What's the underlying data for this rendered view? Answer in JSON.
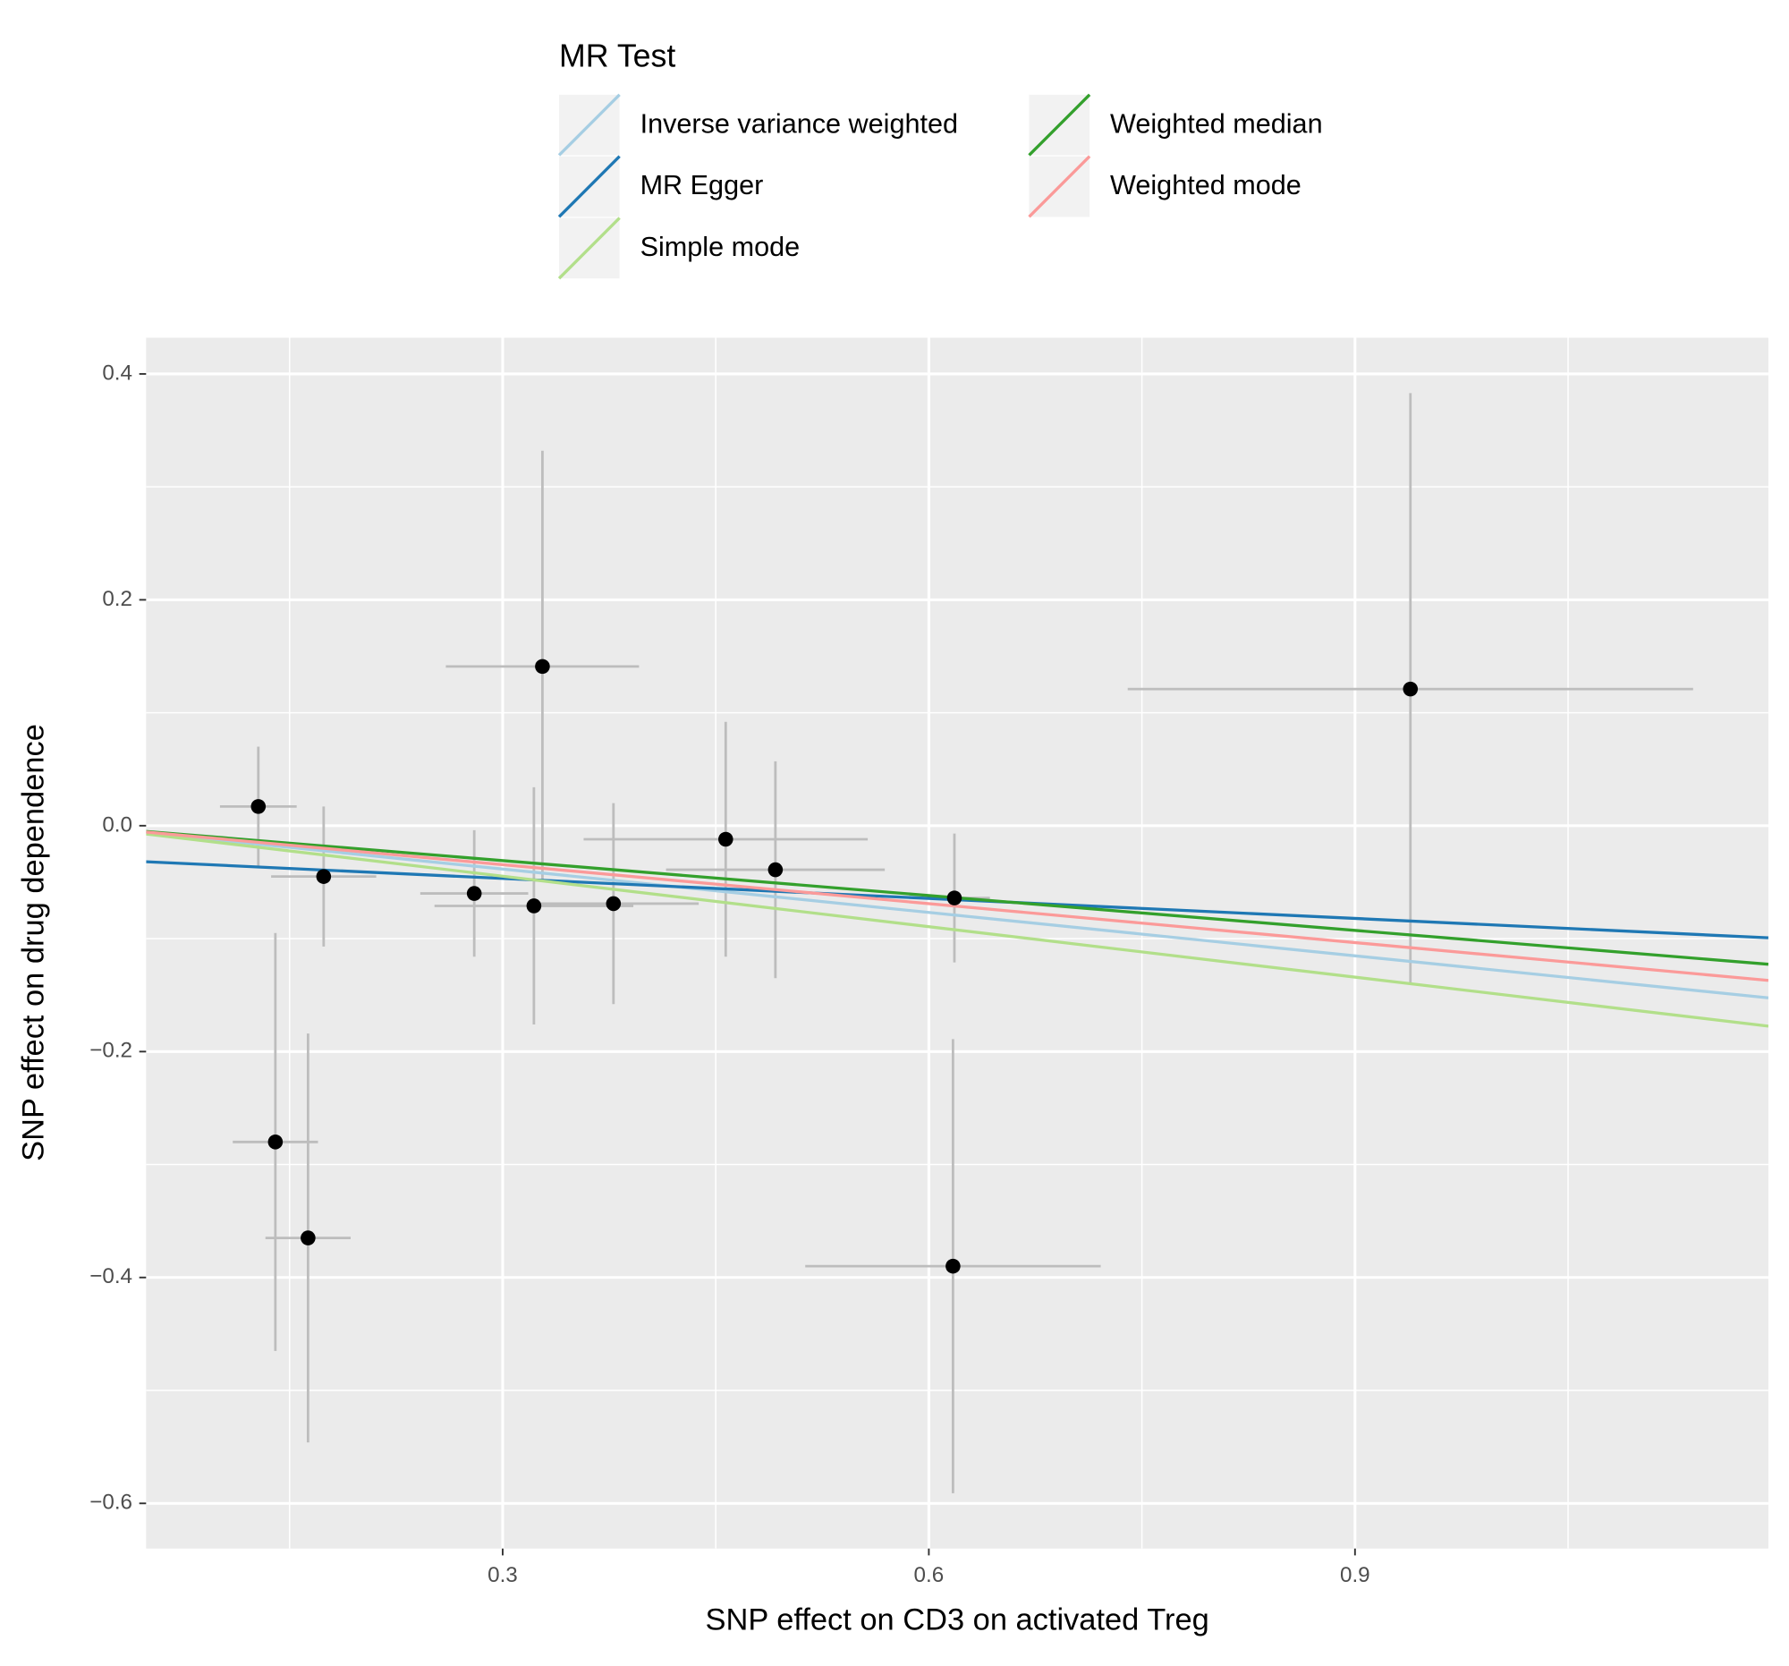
{
  "chart_data": {
    "type": "scatter",
    "x_label": "SNP effect on CD3 on activated Treg",
    "y_label": "SNP effect on drug dependence",
    "legend_title": "MR Test",
    "legend_position": "top",
    "grid": true,
    "background": "#ebebeb",
    "xlim": [
      0.049,
      1.191
    ],
    "ylim": [
      -0.64,
      0.432
    ],
    "xticks": [
      0.3,
      0.6,
      0.9
    ],
    "yticks": [
      {
        "value": -0.6,
        "label": "−0.6"
      },
      {
        "value": -0.4,
        "label": "−0.4"
      },
      {
        "value": -0.2,
        "label": "−0.2"
      },
      {
        "value": 0,
        "label": "0.0"
      },
      0.2,
      0.4
    ],
    "x_minor_grid": [
      0.15,
      0.45,
      0.75,
      1.05
    ],
    "y_minor_grid": [
      -0.5,
      -0.3,
      -0.1,
      0.1,
      0.3
    ],
    "points": {
      "color": "#000000",
      "error_color": "#bdbdbd",
      "x": [
        0.128,
        0.174,
        0.14,
        0.163,
        0.28,
        0.328,
        0.322,
        0.378,
        0.457,
        0.492,
        0.618,
        0.617,
        0.939
      ],
      "y": [
        0.017,
        -0.045,
        -0.28,
        -0.365,
        -0.06,
        0.141,
        -0.071,
        -0.069,
        -0.012,
        -0.039,
        -0.064,
        -0.39,
        0.121
      ],
      "x_err": [
        0.027,
        0.037,
        0.03,
        0.03,
        0.038,
        0.068,
        0.07,
        0.06,
        0.1,
        0.077,
        0.025,
        0.104,
        0.199
      ],
      "y_err": [
        0.053,
        0.062,
        0.185,
        0.181,
        0.056,
        0.191,
        0.105,
        0.089,
        0.104,
        0.096,
        0.057,
        0.201,
        0.262
      ]
    },
    "series": [
      {
        "name": "Inverse variance weighted",
        "color": "#a6cee3",
        "slope": -0.128,
        "intercept": 0
      },
      {
        "name": "MR Egger",
        "color": "#1f78b4",
        "slope": -0.059,
        "intercept": -0.029
      },
      {
        "name": "Simple mode",
        "color": "#b2df8a",
        "slope": -0.149,
        "intercept": 0
      },
      {
        "name": "Weighted median",
        "color": "#33a02c",
        "slope": -0.103,
        "intercept": 0
      },
      {
        "name": "Weighted mode",
        "color": "#fb9a99",
        "slope": -0.115,
        "intercept": 0
      }
    ]
  }
}
